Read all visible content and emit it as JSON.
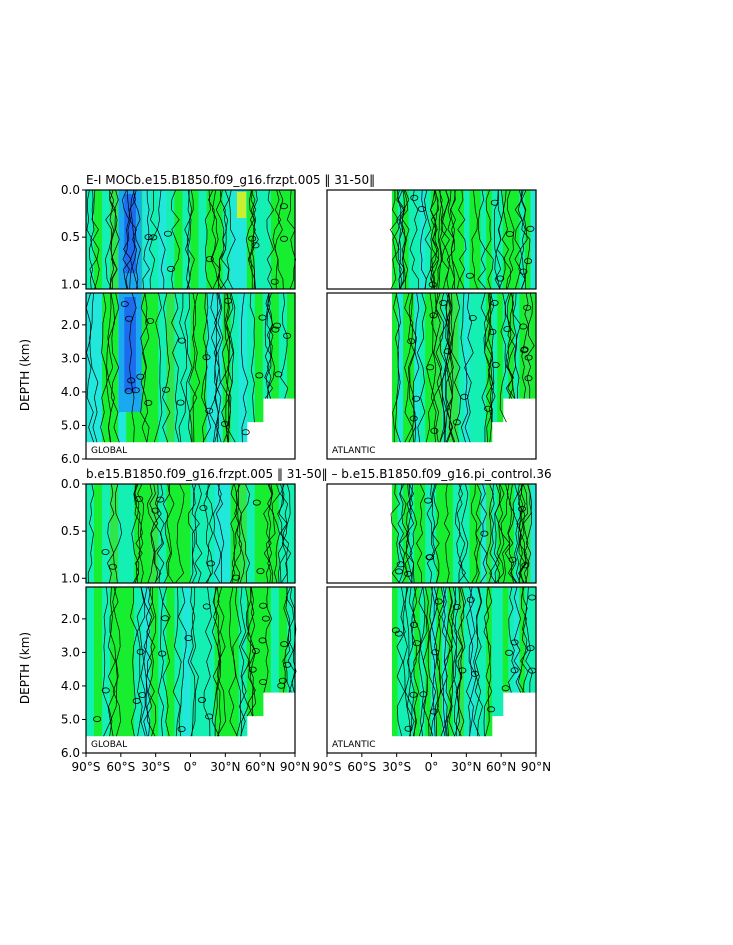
{
  "figure": {
    "title_top": "E-I MOCb.e15.B1850.f09_g16.frzpt.005 ‖ 31-50‖",
    "title_bottom": "b.e15.B1850.f09_g16.frzpt.005 ‖ 31-50‖ – b.e15.B1850.f09_g16.pi_control.36",
    "y_axis_label": "DEPTH (km)",
    "panel_labels": {
      "global": "GLOBAL",
      "atlantic": "ATLANTIC"
    },
    "colors": {
      "frame": "#000000",
      "contour": "#000000",
      "fill_light_green": "#2ee64a",
      "fill_green": "#18ee30",
      "fill_cyan": "#14f0b4",
      "fill_aqua": "#22e8dc",
      "fill_blue": "#1aa8ee",
      "fill_deep_blue": "#1c6cf0",
      "fill_yellow": "#c8f030"
    }
  },
  "chart_data": [
    {
      "type": "heatmap",
      "title": "E-I MOCb.e15.B1850.f09_g16.frzpt.005 ‖ 31-50‖",
      "panel": "GLOBAL",
      "ylabel": "DEPTH (km)",
      "upper_yticks": [
        "0.0",
        "0.5",
        "1.0"
      ],
      "lower_yticks": [
        "2.0",
        "3.0",
        "4.0",
        "5.0",
        "6.0"
      ],
      "upper_ylim": [
        0.0,
        1.05
      ],
      "lower_ylim": [
        1.05,
        6.0
      ],
      "xlim": [
        -90,
        90
      ],
      "ocean_x_range": [
        -90,
        90
      ],
      "ocean_floor_km": 5.5,
      "dominant": "green/cyan with deep-blue minimum near 60°S",
      "grid": false
    },
    {
      "type": "heatmap",
      "title": "E-I MOCb.e15.B1850.f09_g16.frzpt.005 ‖ 31-50‖",
      "panel": "ATLANTIC",
      "upper_yticks": [],
      "lower_yticks": [],
      "upper_ylim": [
        0.0,
        1.05
      ],
      "lower_ylim": [
        1.05,
        6.0
      ],
      "xlim": [
        -90,
        90
      ],
      "ocean_x_range": [
        -34,
        90
      ],
      "ocean_floor_km": 5.5,
      "dominant": "green/cyan",
      "grid": false
    },
    {
      "type": "heatmap",
      "title": "b.e15.B1850.f09_g16.frzpt.005 ‖ 31-50‖ – b.e15.B1850.f09_g16.pi_control.36",
      "panel": "GLOBAL",
      "ylabel": "DEPTH (km)",
      "upper_yticks": [
        "0.0",
        "0.5",
        "1.0"
      ],
      "lower_yticks": [
        "2.0",
        "3.0",
        "4.0",
        "5.0",
        "6.0"
      ],
      "upper_ylim": [
        0.0,
        1.05
      ],
      "lower_ylim": [
        1.05,
        6.0
      ],
      "xlim": [
        -90,
        90
      ],
      "xticks": [
        "90°S",
        "60°S",
        "30°S",
        "0°",
        "30°N",
        "60°N",
        "90°N"
      ],
      "ocean_x_range": [
        -90,
        90
      ],
      "ocean_floor_km": 5.5,
      "dominant": "green/cyan",
      "grid": false
    },
    {
      "type": "heatmap",
      "title": "b.e15.B1850.f09_g16.frzpt.005 ‖ 31-50‖ – b.e15.B1850.f09_g16.pi_control.36",
      "panel": "ATLANTIC",
      "upper_yticks": [],
      "lower_yticks": [],
      "upper_ylim": [
        0.0,
        1.05
      ],
      "lower_ylim": [
        1.05,
        6.0
      ],
      "xlim": [
        -90,
        90
      ],
      "xticks": [
        "90°S",
        "60°S",
        "30°S",
        "0°",
        "30°N",
        "60°N",
        "90°N"
      ],
      "ocean_x_range": [
        -34,
        90
      ],
      "ocean_floor_km": 5.5,
      "dominant": "green/cyan",
      "grid": false
    }
  ]
}
